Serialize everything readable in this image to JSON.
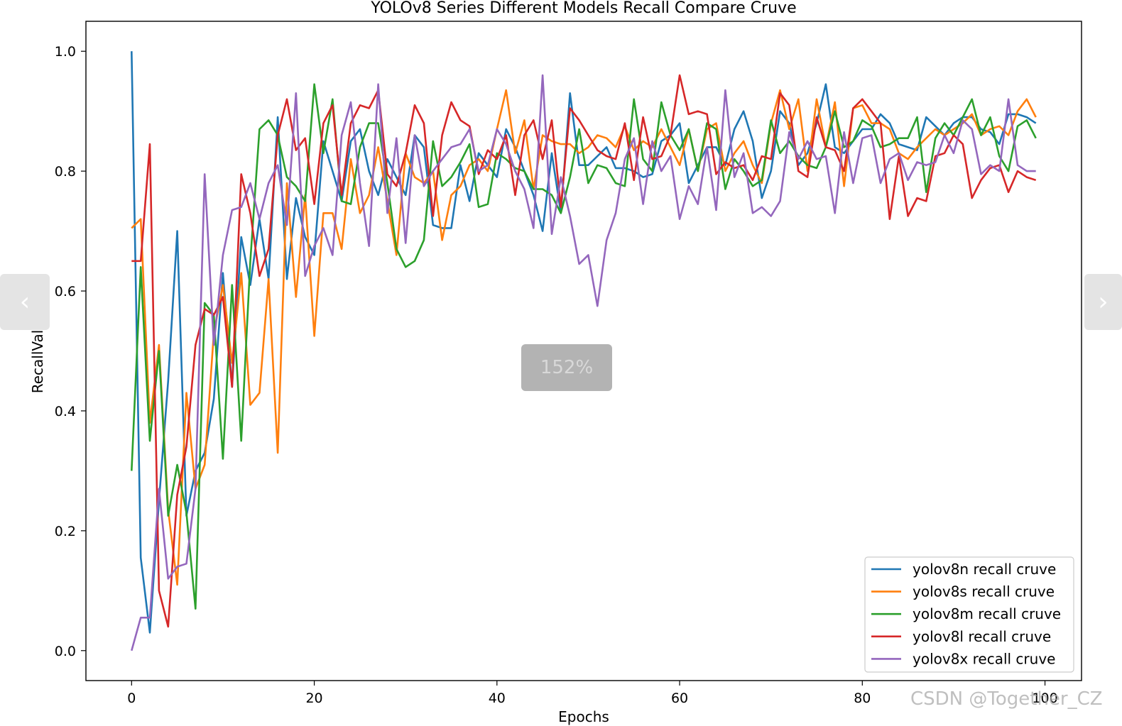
{
  "chart_data": {
    "type": "line",
    "title": "YOLOv8 Series Different Models Recall Compare Cruve",
    "xlabel": "Epochs",
    "ylabel": "RecallValue",
    "xlim": [
      -5,
      104
    ],
    "ylim": [
      -0.05,
      1.05
    ],
    "xticks": [
      0,
      20,
      40,
      60,
      80,
      100
    ],
    "xtick_labels": [
      "0",
      "20",
      "40",
      "60",
      "80",
      "100"
    ],
    "yticks": [
      0.0,
      0.2,
      0.4,
      0.6,
      0.8,
      1.0
    ],
    "ytick_labels": [
      "0.0",
      "0.2",
      "0.4",
      "0.6",
      "0.8",
      "1.0"
    ],
    "grid": false,
    "legend_position": "lower-right",
    "x": [
      0,
      1,
      2,
      3,
      4,
      5,
      6,
      7,
      8,
      9,
      10,
      11,
      12,
      13,
      14,
      15,
      16,
      17,
      18,
      19,
      20,
      21,
      22,
      23,
      24,
      25,
      26,
      27,
      28,
      29,
      30,
      31,
      32,
      33,
      34,
      35,
      36,
      37,
      38,
      39,
      40,
      41,
      42,
      43,
      44,
      45,
      46,
      47,
      48,
      49,
      50,
      51,
      52,
      53,
      54,
      55,
      56,
      57,
      58,
      59,
      60,
      61,
      62,
      63,
      64,
      65,
      66,
      67,
      68,
      69,
      70,
      71,
      72,
      73,
      74,
      75,
      76,
      77,
      78,
      79,
      80,
      81,
      82,
      83,
      84,
      85,
      86,
      87,
      88,
      89,
      90,
      91,
      92,
      93,
      94,
      95,
      96,
      97,
      98,
      99
    ],
    "series": [
      {
        "name": "yolov8n recall cruve",
        "color": "#1f77b4",
        "values": [
          1.0,
          0.155,
          0.03,
          0.25,
          0.45,
          0.7,
          0.225,
          0.3,
          0.33,
          0.42,
          0.63,
          0.44,
          0.69,
          0.61,
          0.72,
          0.62,
          0.89,
          0.62,
          0.755,
          0.69,
          0.66,
          0.85,
          0.8,
          0.75,
          0.85,
          0.87,
          0.8,
          0.76,
          0.82,
          0.79,
          0.76,
          0.86,
          0.84,
          0.71,
          0.705,
          0.705,
          0.81,
          0.75,
          0.83,
          0.81,
          0.79,
          0.87,
          0.84,
          0.8,
          0.76,
          0.7,
          0.83,
          0.73,
          0.93,
          0.81,
          0.81,
          0.825,
          0.84,
          0.805,
          0.805,
          0.8,
          0.79,
          0.795,
          0.85,
          0.86,
          0.88,
          0.78,
          0.81,
          0.84,
          0.84,
          0.81,
          0.87,
          0.9,
          0.85,
          0.755,
          0.8,
          0.9,
          0.88,
          0.81,
          0.83,
          0.88,
          0.945,
          0.84,
          0.83,
          0.85,
          0.87,
          0.87,
          0.895,
          0.88,
          0.845,
          0.84,
          0.835,
          0.89,
          0.875,
          0.86,
          0.88,
          0.89,
          0.89,
          0.87,
          0.865,
          0.845,
          0.895,
          0.895,
          0.89,
          0.88
        ]
      },
      {
        "name": "yolov8s recall cruve",
        "color": "#ff7f0e",
        "values": [
          0.705,
          0.72,
          0.38,
          0.51,
          0.235,
          0.11,
          0.43,
          0.27,
          0.31,
          0.53,
          0.61,
          0.48,
          0.63,
          0.41,
          0.43,
          0.62,
          0.33,
          0.78,
          0.59,
          0.76,
          0.525,
          0.73,
          0.73,
          0.67,
          0.82,
          0.73,
          0.76,
          0.84,
          0.75,
          0.66,
          0.83,
          0.79,
          0.78,
          0.8,
          0.685,
          0.76,
          0.775,
          0.81,
          0.82,
          0.8,
          0.87,
          0.935,
          0.83,
          0.885,
          0.77,
          0.86,
          0.85,
          0.845,
          0.845,
          0.83,
          0.84,
          0.86,
          0.855,
          0.84,
          0.875,
          0.835,
          0.85,
          0.84,
          0.87,
          0.84,
          0.81,
          0.87,
          0.8,
          0.87,
          0.88,
          0.8,
          0.83,
          0.85,
          0.81,
          0.78,
          0.88,
          0.935,
          0.87,
          0.92,
          0.8,
          0.92,
          0.84,
          0.915,
          0.775,
          0.905,
          0.91,
          0.88,
          0.88,
          0.87,
          0.83,
          0.82,
          0.84,
          0.855,
          0.87,
          0.86,
          0.87,
          0.88,
          0.895,
          0.86,
          0.87,
          0.875,
          0.86,
          0.9,
          0.92,
          0.89
        ]
      },
      {
        "name": "yolov8m recall cruve",
        "color": "#2ca02c",
        "values": [
          0.3,
          0.64,
          0.35,
          0.5,
          0.225,
          0.31,
          0.23,
          0.07,
          0.58,
          0.56,
          0.32,
          0.61,
          0.35,
          0.65,
          0.87,
          0.885,
          0.86,
          0.79,
          0.775,
          0.75,
          0.945,
          0.83,
          0.92,
          0.75,
          0.745,
          0.84,
          0.88,
          0.88,
          0.78,
          0.67,
          0.64,
          0.65,
          0.685,
          0.85,
          0.775,
          0.79,
          0.815,
          0.845,
          0.74,
          0.745,
          0.83,
          0.82,
          0.805,
          0.8,
          0.77,
          0.77,
          0.76,
          0.73,
          0.79,
          0.87,
          0.78,
          0.81,
          0.805,
          0.78,
          0.775,
          0.92,
          0.82,
          0.8,
          0.915,
          0.86,
          0.835,
          0.87,
          0.8,
          0.88,
          0.87,
          0.77,
          0.82,
          0.8,
          0.775,
          0.785,
          0.885,
          0.83,
          0.85,
          0.825,
          0.81,
          0.805,
          0.84,
          0.9,
          0.84,
          0.85,
          0.885,
          0.875,
          0.84,
          0.845,
          0.855,
          0.855,
          0.89,
          0.765,
          0.855,
          0.88,
          0.86,
          0.89,
          0.92,
          0.86,
          0.89,
          0.825,
          0.8,
          0.875,
          0.885,
          0.855
        ]
      },
      {
        "name": "yolov8l recall cruve",
        "color": "#d62728",
        "values": [
          0.65,
          0.65,
          0.845,
          0.1,
          0.04,
          0.26,
          0.34,
          0.51,
          0.57,
          0.56,
          0.59,
          0.44,
          0.795,
          0.73,
          0.625,
          0.67,
          0.86,
          0.92,
          0.835,
          0.855,
          0.745,
          0.88,
          0.91,
          0.76,
          0.88,
          0.91,
          0.905,
          0.935,
          0.795,
          0.775,
          0.83,
          0.91,
          0.88,
          0.725,
          0.86,
          0.915,
          0.885,
          0.875,
          0.795,
          0.835,
          0.82,
          0.86,
          0.76,
          0.86,
          0.885,
          0.82,
          0.885,
          0.74,
          0.905,
          0.885,
          0.86,
          0.835,
          0.825,
          0.82,
          0.88,
          0.785,
          0.89,
          0.82,
          0.825,
          0.86,
          0.96,
          0.895,
          0.9,
          0.895,
          0.795,
          0.815,
          0.805,
          0.81,
          0.785,
          0.825,
          0.82,
          0.93,
          0.91,
          0.8,
          0.79,
          0.89,
          0.84,
          0.835,
          0.8,
          0.905,
          0.92,
          0.9,
          0.88,
          0.72,
          0.825,
          0.725,
          0.755,
          0.75,
          0.825,
          0.83,
          0.86,
          0.845,
          0.755,
          0.785,
          0.805,
          0.81,
          0.765,
          0.8,
          0.79,
          0.785
        ]
      },
      {
        "name": "yolov8x recall cruve",
        "color": "#9467bd",
        "values": [
          0.0,
          0.055,
          0.055,
          0.27,
          0.12,
          0.14,
          0.145,
          0.27,
          0.795,
          0.51,
          0.66,
          0.735,
          0.74,
          0.78,
          0.72,
          0.78,
          0.81,
          0.71,
          0.93,
          0.625,
          0.675,
          0.705,
          0.66,
          0.86,
          0.915,
          0.78,
          0.675,
          0.945,
          0.73,
          0.855,
          0.68,
          0.86,
          0.775,
          0.8,
          0.82,
          0.84,
          0.845,
          0.87,
          0.8,
          0.81,
          0.87,
          0.845,
          0.8,
          0.77,
          0.705,
          0.96,
          0.695,
          0.79,
          0.725,
          0.645,
          0.66,
          0.575,
          0.685,
          0.73,
          0.82,
          0.855,
          0.745,
          0.85,
          0.8,
          0.825,
          0.72,
          0.775,
          0.745,
          0.84,
          0.735,
          0.935,
          0.79,
          0.83,
          0.73,
          0.74,
          0.725,
          0.75,
          0.865,
          0.82,
          0.85,
          0.82,
          0.825,
          0.73,
          0.865,
          0.78,
          0.855,
          0.86,
          0.78,
          0.82,
          0.83,
          0.785,
          0.815,
          0.81,
          0.815,
          0.86,
          0.83,
          0.885,
          0.87,
          0.795,
          0.81,
          0.8,
          0.92,
          0.81,
          0.8,
          0.8
        ]
      }
    ]
  },
  "overlay": {
    "zoom_label": "152%",
    "prev_icon": "chevron-left-icon",
    "prev_glyph": "‹",
    "next_icon": "chevron-right-icon",
    "next_glyph": "›",
    "watermark": "CSDN @Together_CZ"
  }
}
